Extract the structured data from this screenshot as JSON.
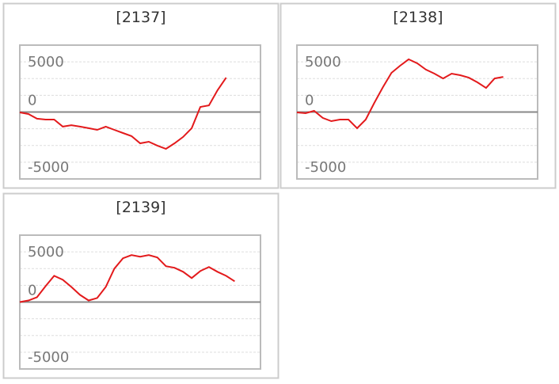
{
  "chart_data": [
    {
      "type": "line",
      "title": "[2137]",
      "color": "#e31a1c",
      "ylim": [
        -5000,
        5000
      ],
      "yticks": [
        -5000,
        0,
        5000
      ],
      "values": [
        -30,
        -150,
        -500,
        -560,
        -560,
        -1090,
        -980,
        -1090,
        -1210,
        -1330,
        -1090,
        -1330,
        -1570,
        -1800,
        -2340,
        -2220,
        -2510,
        -2750,
        -2340,
        -1860,
        -1210,
        380,
        500,
        1630,
        2570
      ]
    },
    {
      "type": "line",
      "title": "[2138]",
      "color": "#e31a1c",
      "ylim": [
        -5000,
        5000
      ],
      "yticks": [
        -5000,
        0,
        5000
      ],
      "values": [
        -30,
        -90,
        90,
        -440,
        -680,
        -560,
        -560,
        -1210,
        -560,
        680,
        1860,
        2930,
        3460,
        3940,
        3640,
        3170,
        2870,
        2510,
        2870,
        2750,
        2570,
        2220,
        1800,
        2510,
        2630
      ]
    },
    {
      "type": "line",
      "title": "[2139]",
      "color": "#e31a1c",
      "ylim": [
        -5000,
        5000
      ],
      "yticks": [
        -5000,
        0,
        5000
      ],
      "values": [
        0,
        120,
        360,
        1190,
        1960,
        1670,
        1130,
        540,
        120,
        300,
        1130,
        2500,
        3270,
        3510,
        3390,
        3510,
        3330,
        2680,
        2560,
        2260,
        1790,
        2320,
        2620,
        2260,
        1960,
        1550
      ]
    }
  ]
}
